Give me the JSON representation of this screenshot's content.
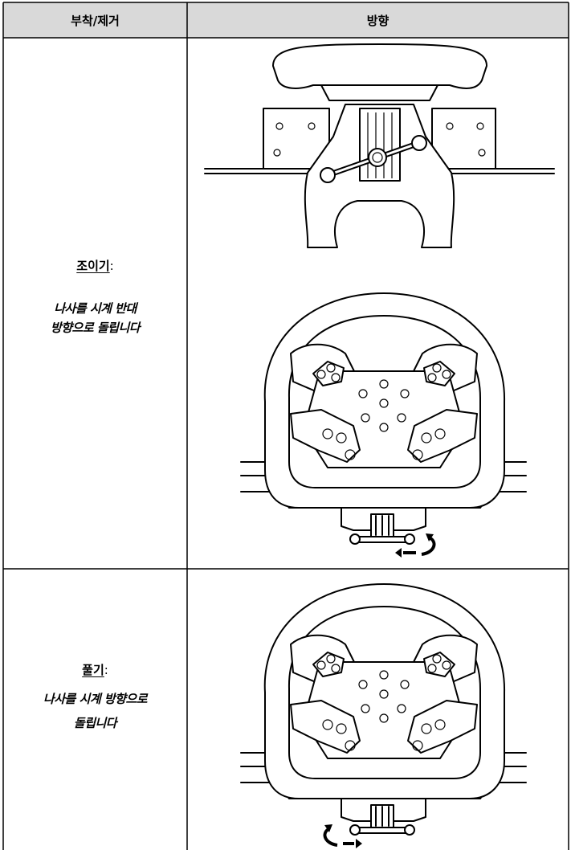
{
  "table": {
    "header": [
      "부착/제거",
      "방향"
    ],
    "rows": [
      {
        "label": "조이기",
        "colon": ":",
        "lines": [
          "나사를 시계 반대",
          "방향으로 돌립니다"
        ]
      },
      {
        "label": "풀기",
        "colon": ":",
        "lines": [
          "나사를 시계 방향으로",
          "돌립니다"
        ]
      }
    ]
  }
}
